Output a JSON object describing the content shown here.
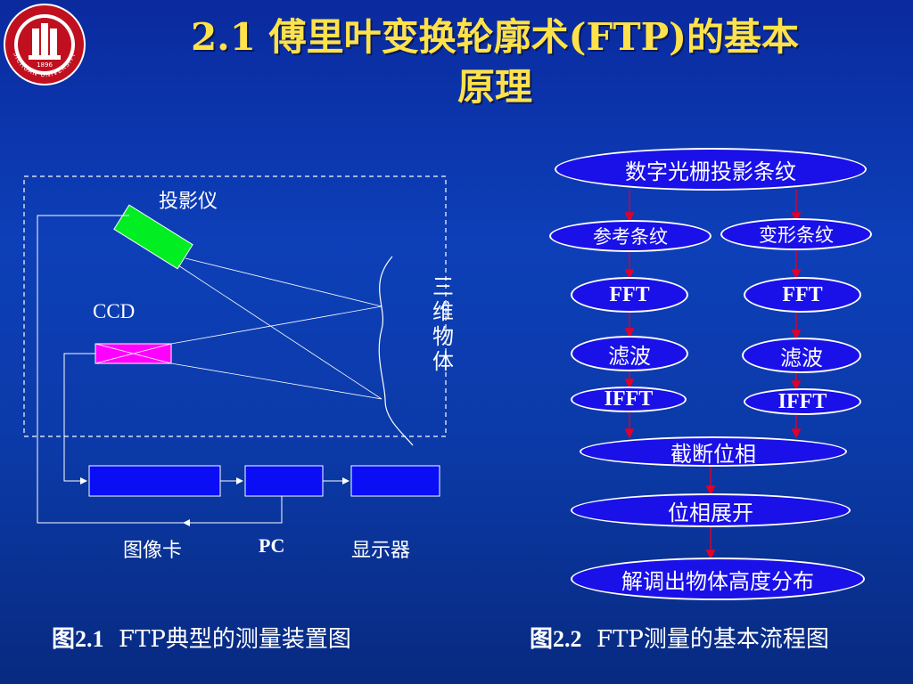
{
  "title": {
    "line1": "2.1  傅里叶变换轮廓术(FTP)的基本",
    "line2": "原理"
  },
  "left_figure": {
    "projector_label": "投影仪",
    "ccd_label": "CCD",
    "object_label": [
      "三",
      "维",
      "物",
      "体"
    ],
    "capture_card_label": "图像卡",
    "pc_label": "PC",
    "display_label": "显示器",
    "caption_num": "图2.1",
    "caption_text": "FTP典型的测量装置图",
    "colors": {
      "projector": "#00ee22",
      "ccd": "#ff00ff",
      "boxes": "#0a0ef5"
    }
  },
  "right_figure": {
    "nodes": {
      "top": "数字光栅投影条纹",
      "ref": "参考条纹",
      "def": "变形条纹",
      "fft_l": "FFT",
      "fft_r": "FFT",
      "filt_l": "滤波",
      "filt_r": "滤波",
      "ifft_l": "IFFT",
      "ifft_r": "IFFT",
      "trunc": "截断位相",
      "unwrap": "位相展开",
      "demod": "解调出物体高度分布"
    },
    "caption_num": "图2.2",
    "caption_text": "FTP测量的基本流程图",
    "colors": {
      "node_fill": "#1a10e8",
      "arrow": "#e0002a"
    }
  },
  "logo_text": "SICHUAN UNIVERSITY",
  "logo_year": "1896"
}
